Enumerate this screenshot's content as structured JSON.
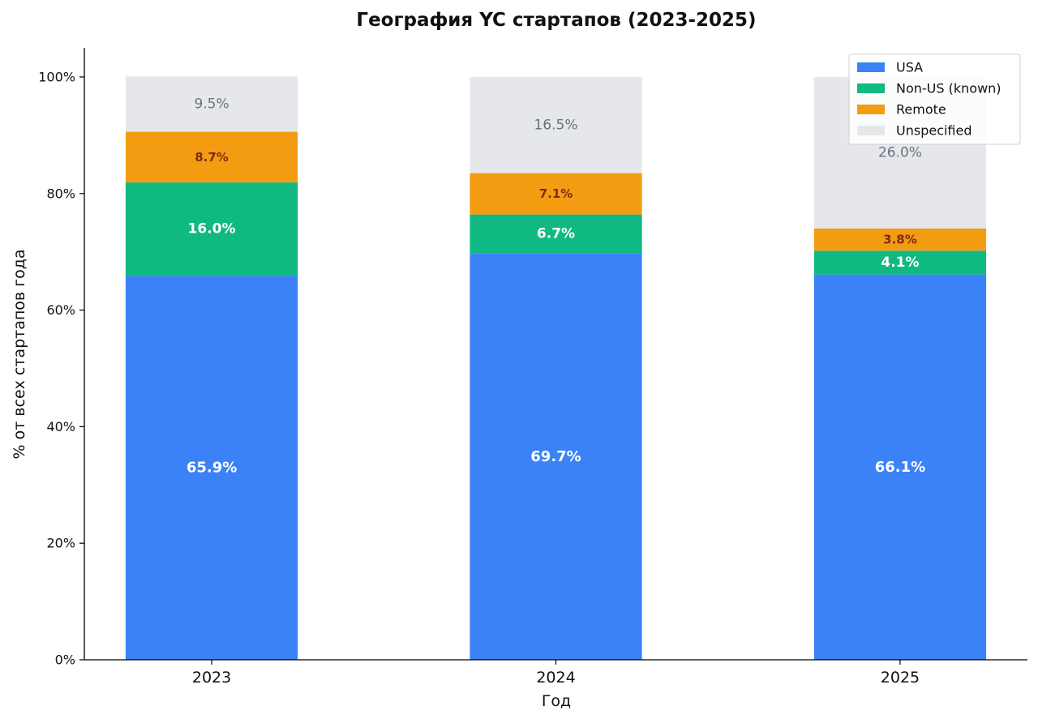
{
  "chart_data": {
    "type": "bar",
    "stacked": true,
    "title": "География YC стартапов (2023-2025)",
    "xlabel": "Год",
    "ylabel": "% от всех стартапов года",
    "categories": [
      "2023",
      "2024",
      "2025"
    ],
    "ylim": [
      0,
      105
    ],
    "yticks": [
      0,
      20,
      40,
      60,
      80,
      100
    ],
    "ytick_labels": [
      "0%",
      "20%",
      "40%",
      "60%",
      "80%",
      "100%"
    ],
    "legend_position": "top-right",
    "series": [
      {
        "name": "USA",
        "color": "#3b82f6",
        "label_color": "#ffffff",
        "label_weight": "bold",
        "values": [
          65.9,
          69.7,
          66.1
        ],
        "labels": [
          "65.9%",
          "69.7%",
          "66.1%"
        ]
      },
      {
        "name": "Non-US (known)",
        "color": "#10b981",
        "label_color": "#ffffff",
        "label_weight": "bold",
        "values": [
          16.0,
          6.7,
          4.1
        ],
        "labels": [
          "16.0%",
          "6.7%",
          "4.1%"
        ]
      },
      {
        "name": "Remote",
        "color": "#f39c12",
        "label_color": "#7c2d12",
        "label_weight": "bold",
        "values": [
          8.7,
          7.1,
          3.8
        ],
        "labels": [
          "8.7%",
          "7.1%",
          "3.8%"
        ]
      },
      {
        "name": "Unspecified",
        "color": "#e5e7eb",
        "label_color": "#6b7280",
        "label_weight": "normal",
        "values": [
          9.5,
          16.5,
          26.0
        ],
        "labels": [
          "9.5%",
          "16.5%",
          "26.0%"
        ]
      }
    ]
  }
}
